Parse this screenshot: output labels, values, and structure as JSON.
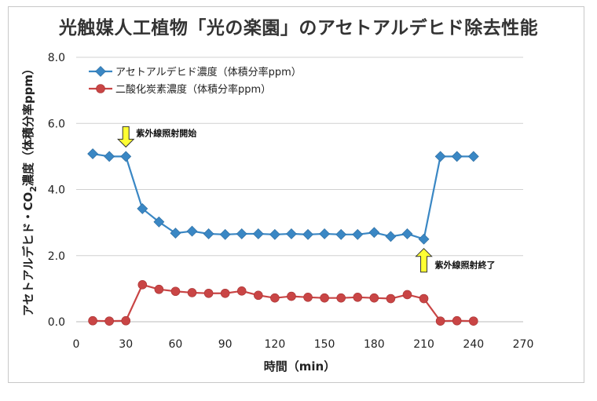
{
  "chart_data": {
    "type": "line",
    "title": "光触媒人工植物「光の楽園」のアセトアルデヒド除去性能",
    "xlabel": "時間（min）",
    "ylabel_parts": [
      "アセトアルデヒド・CO",
      "2",
      "濃度（体積分率ppm）"
    ],
    "xlim": [
      0,
      270
    ],
    "ylim": [
      0,
      8
    ],
    "xticks": [
      0,
      30,
      60,
      90,
      120,
      150,
      180,
      210,
      240,
      270
    ],
    "xtick_labels": [
      "0",
      "30",
      "60",
      "90",
      "120",
      "150",
      "180",
      "210",
      "240",
      "270"
    ],
    "yticks": [
      0,
      2,
      4,
      6,
      8
    ],
    "ytick_labels": [
      "0.0",
      "2.0",
      "4.0",
      "6.0",
      "8.0"
    ],
    "grid": "horizontal",
    "legend_position": "top-left",
    "series": [
      {
        "name": "アセトアルデヒド濃度（体積分率ppm）",
        "color": "#3a87c4",
        "marker": "diamond",
        "x": [
          10,
          20,
          30,
          40,
          50,
          60,
          70,
          80,
          90,
          100,
          110,
          120,
          130,
          140,
          150,
          160,
          170,
          180,
          190,
          200,
          210,
          220,
          230,
          240
        ],
        "y": [
          5.08,
          5.0,
          5.0,
          3.42,
          3.02,
          2.68,
          2.74,
          2.66,
          2.64,
          2.66,
          2.66,
          2.64,
          2.66,
          2.64,
          2.66,
          2.64,
          2.64,
          2.7,
          2.58,
          2.66,
          2.5,
          5.0,
          5.0,
          5.0
        ]
      },
      {
        "name": "二酸化炭素濃度（体積分率ppm）",
        "color": "#c94545",
        "marker": "circle",
        "x": [
          10,
          20,
          30,
          40,
          50,
          60,
          70,
          80,
          90,
          100,
          110,
          120,
          130,
          140,
          150,
          160,
          170,
          180,
          190,
          200,
          210,
          220,
          230,
          240
        ],
        "y": [
          0.03,
          0.02,
          0.03,
          1.12,
          0.98,
          0.92,
          0.88,
          0.86,
          0.86,
          0.93,
          0.8,
          0.72,
          0.77,
          0.74,
          0.72,
          0.72,
          0.74,
          0.72,
          0.7,
          0.82,
          0.7,
          0.02,
          0.03,
          0.02
        ]
      }
    ],
    "annotations": [
      {
        "text": "紫外線照射開始",
        "x": 30,
        "y": 5.0,
        "arrow": "down",
        "color": "#ffff33"
      },
      {
        "text": "紫外線照射終了",
        "x": 210,
        "y": 2.5,
        "arrow": "up",
        "color": "#ffff33"
      }
    ]
  }
}
